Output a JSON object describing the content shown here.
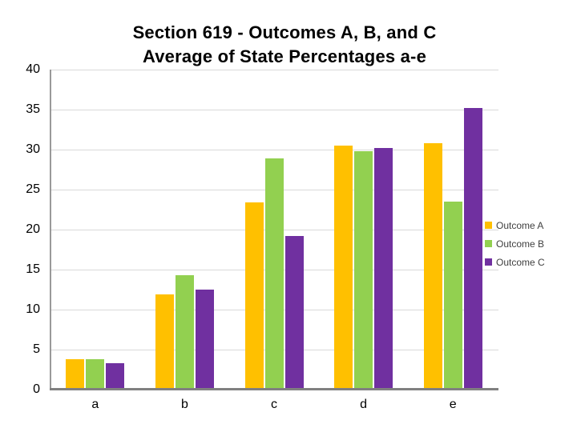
{
  "title": {
    "line1": "Section 619 - Outcomes A, B, and C",
    "line2": "Average of State Percentages a-e"
  },
  "chart_data": {
    "type": "bar",
    "title": "Section 619 - Outcomes A, B, and C Average of State Percentages a-e",
    "categories": [
      "a",
      "b",
      "c",
      "d",
      "e"
    ],
    "series": [
      {
        "name": "Outcome A",
        "color": "#FFC000",
        "values": [
          3.8,
          11.9,
          23.4,
          30.5,
          30.8
        ]
      },
      {
        "name": "Outcome B",
        "color": "#92D050",
        "values": [
          3.8,
          14.3,
          28.9,
          29.8,
          23.5
        ]
      },
      {
        "name": "Outcome C",
        "color": "#7030A0",
        "values": [
          3.3,
          12.5,
          19.2,
          30.2,
          35.2
        ]
      }
    ],
    "xlabel": "",
    "ylabel": "",
    "ylim": [
      0,
      40
    ],
    "yticks": [
      0,
      5,
      10,
      15,
      20,
      25,
      30,
      35,
      40
    ],
    "grid": true,
    "legend_position": "right"
  },
  "colors": {
    "background": "#FFFFFF",
    "gridline": "#D9D9D9",
    "axis_vertical": "#999999",
    "axis_horizontal": "#808080",
    "title_text": "#000000",
    "tick_text": "#000000",
    "legend_text": "#404040"
  }
}
